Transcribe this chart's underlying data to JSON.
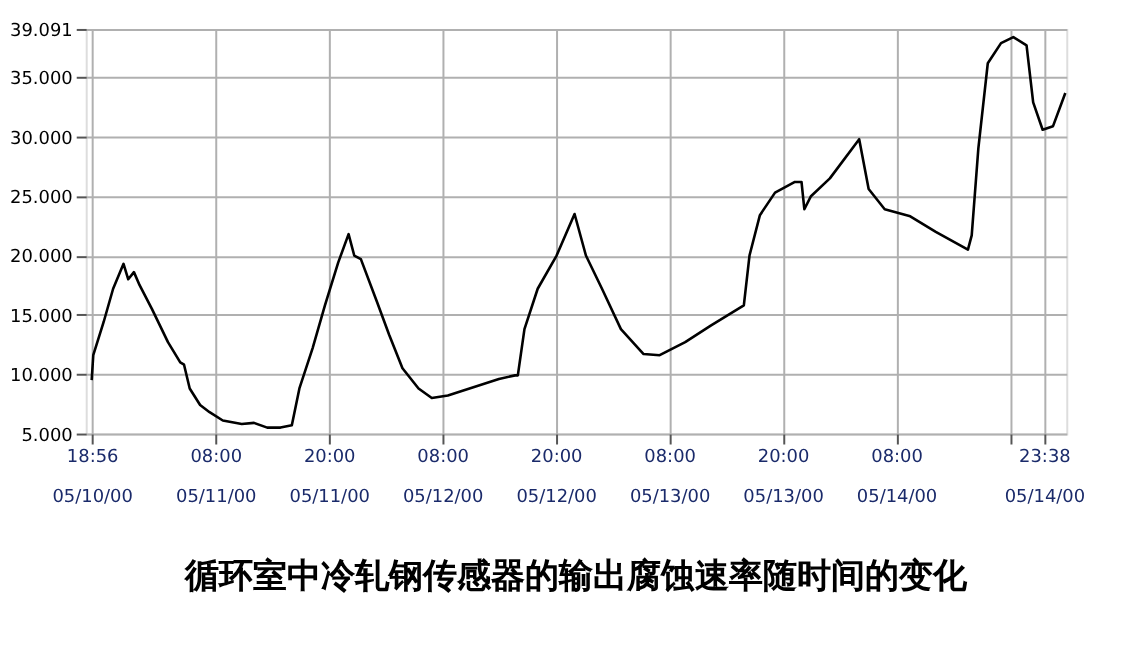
{
  "chart_data": {
    "type": "line",
    "title": "循环室中冷轧钢传感器的输出腐蚀速率随时间的变化",
    "x": [
      "2000-05-10T18:56",
      "2000-05-10T19:06",
      "2000-05-10T20:12",
      "2000-05-10T21:12",
      "2000-05-10T22:18",
      "2000-05-10T22:48",
      "2000-05-10T23:24",
      "2000-05-11T00:00",
      "2000-05-11T01:18",
      "2000-05-11T03:00",
      "2000-05-11T04:18",
      "2000-05-11T04:42",
      "2000-05-11T05:18",
      "2000-05-11T06:24",
      "2000-05-11T07:24",
      "2000-05-11T08:48",
      "2000-05-11T10:48",
      "2000-05-11T12:06",
      "2000-05-11T13:30",
      "2000-05-11T14:54",
      "2000-05-11T16:06",
      "2000-05-11T16:54",
      "2000-05-11T18:18",
      "2000-05-11T19:36",
      "2000-05-11T21:00",
      "2000-05-11T22:06",
      "2000-05-11T22:42",
      "2000-05-11T23:24",
      "2000-05-12T01:06",
      "2000-05-12T02:24",
      "2000-05-12T03:48",
      "2000-05-12T05:30",
      "2000-05-12T06:54",
      "2000-05-12T08:36",
      "2000-05-12T11:18",
      "2000-05-12T14:00",
      "2000-05-12T15:42",
      "2000-05-12T16:00",
      "2000-05-12T16:42",
      "2000-05-12T18:06",
      "2000-05-12T20:06",
      "2000-05-12T22:00",
      "2000-05-12T23:12",
      "2000-05-13T00:54",
      "2000-05-13T02:54",
      "2000-05-13T05:18",
      "2000-05-13T07:00",
      "2000-05-13T09:42",
      "2000-05-13T12:24",
      "2000-05-13T15:54",
      "2000-05-13T16:30",
      "2000-05-13T17:36",
      "2000-05-13T19:12",
      "2000-05-13T21:18",
      "2000-05-13T22:00",
      "2000-05-13T22:18",
      "2000-05-13T23:00",
      "2000-05-14T01:00",
      "2000-05-14T04:06",
      "2000-05-14T05:06",
      "2000-05-14T06:48",
      "2000-05-14T09:30",
      "2000-05-14T12:12",
      "2000-05-14T15:36",
      "2000-05-14T16:00",
      "2000-05-14T16:42",
      "2000-05-14T17:42",
      "2000-05-14T19:06",
      "2000-05-14T20:24",
      "2000-05-14T21:48",
      "2000-05-14T22:30",
      "2000-05-14T23:30",
      "2000-05-15T00:36",
      "2000-05-15T01:54"
    ],
    "series": [
      {
        "color": "#000000",
        "values": [
          9.5,
          11.6,
          14.4,
          17.2,
          19.3,
          18.0,
          18.6,
          17.5,
          15.5,
          12.7,
          11.0,
          10.8,
          8.8,
          7.4,
          6.8,
          6.1,
          5.8,
          5.9,
          5.5,
          5.5,
          5.7,
          8.8,
          12.2,
          15.8,
          19.4,
          21.8,
          20.0,
          19.7,
          16.1,
          13.3,
          10.5,
          8.8,
          8.0,
          8.2,
          8.9,
          9.6,
          9.9,
          9.9,
          13.8,
          17.2,
          20.0,
          23.5,
          20.0,
          17.2,
          13.8,
          11.7,
          11.6,
          12.7,
          14.1,
          15.8,
          20.0,
          23.4,
          25.3,
          26.2,
          26.2,
          23.9,
          25.0,
          26.5,
          29.8,
          25.6,
          23.9,
          23.3,
          22.0,
          20.5,
          21.7,
          29.0,
          36.2,
          37.9,
          38.4,
          37.7,
          32.9,
          30.6,
          30.9,
          33.7
        ]
      }
    ],
    "xlim": [
      "2000-05-10T18:18",
      "2000-05-15T02:00"
    ],
    "xticks": [
      {
        "value": "2000-05-10T18:56",
        "label": "18:56\n05/10/00"
      },
      {
        "value": "2000-05-11T08:00",
        "label": "08:00\n05/11/00"
      },
      {
        "value": "2000-05-11T20:00",
        "label": "20:00\n05/11/00"
      },
      {
        "value": "2000-05-12T08:00",
        "label": "08:00\n05/12/00"
      },
      {
        "value": "2000-05-12T20:00",
        "label": "20:00\n05/12/00"
      },
      {
        "value": "2000-05-13T08:00",
        "label": "08:00\n05/13/00"
      },
      {
        "value": "2000-05-13T20:00",
        "label": "20:00\n05/13/00"
      },
      {
        "value": "2000-05-14T08:00",
        "label": "08:00\n05/14/00"
      },
      {
        "value": "2000-05-14T20:00",
        "label": null
      },
      {
        "value": "2000-05-14T23:38",
        "label": "23:38\n05/14/00"
      }
    ],
    "ylim": [
      5,
      39.091
    ],
    "yticks": [
      {
        "value": 5,
        "label": "5.000"
      },
      {
        "value": 10,
        "label": "10.000"
      },
      {
        "value": 15,
        "label": "15.000"
      },
      {
        "value": 20,
        "label": "20.000"
      },
      {
        "value": 25,
        "label": "25.000"
      },
      {
        "value": 30,
        "label": "30.000"
      },
      {
        "value": 35,
        "label": "35.000"
      },
      {
        "value": 39.091,
        "label": "39.091"
      }
    ],
    "grid": true,
    "line_style": "solid",
    "marker": "none"
  }
}
